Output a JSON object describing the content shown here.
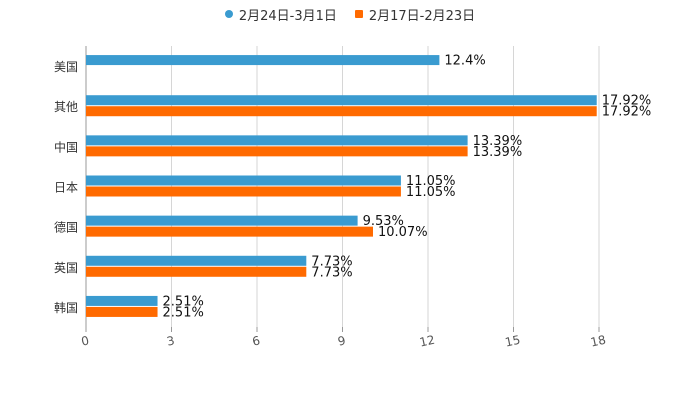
{
  "chart_data": {
    "type": "bar",
    "orientation": "horizontal",
    "categories": [
      "美国",
      "其他",
      "中国",
      "日本",
      "德国",
      "英国",
      "韩国"
    ],
    "series": [
      {
        "name": "2月24日-3月1日",
        "color": "#3a9bd0",
        "values": [
          12.4,
          17.92,
          13.39,
          11.05,
          9.53,
          7.73,
          2.51
        ],
        "labels": [
          "12.4%",
          "17.92%",
          "13.39%",
          "11.05%",
          "9.53%",
          "7.73%",
          "2.51%"
        ]
      },
      {
        "name": "2月17日-2月23日",
        "color": "#ff6a00",
        "values": [
          null,
          17.92,
          13.39,
          11.05,
          10.07,
          7.73,
          2.51
        ],
        "labels": [
          null,
          "17.92%",
          "13.39%",
          "11.05%",
          "10.07%",
          "7.73%",
          "2.51%"
        ]
      }
    ],
    "xlim": [
      0,
      18
    ],
    "ticks": [
      "0",
      "3",
      "6",
      "9",
      "12",
      "15",
      "18"
    ],
    "tick_values": [
      0,
      3,
      6,
      9,
      12,
      15,
      18
    ],
    "grid": true,
    "legend_position": "top-center"
  }
}
